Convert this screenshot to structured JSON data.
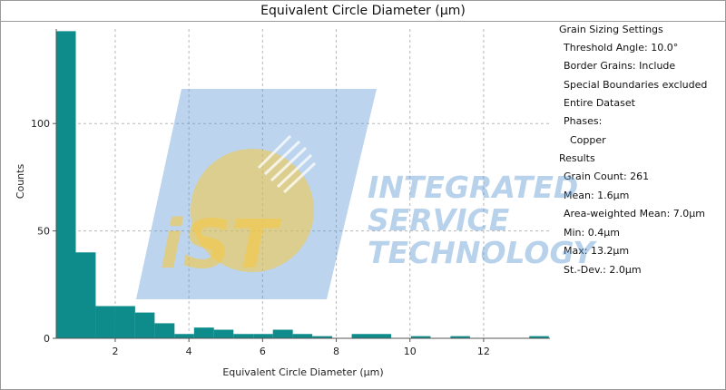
{
  "window": {
    "title": "Equivalent Circle Diameter (μm)"
  },
  "panel": {
    "settings_header": "Grain Sizing Settings",
    "threshold_angle": "Threshold Angle: 10.0°",
    "border_grains": "Border Grains: Include",
    "special_boundaries": "Special Boundaries excluded",
    "dataset": "Entire Dataset",
    "phases_label": "Phases:",
    "phase_name": "Copper",
    "results_header": "Results",
    "grain_count": "Grain Count: 261",
    "mean": "Mean: 1.6μm",
    "area_weighted_mean": "Area-weighted Mean: 7.0μm",
    "min": "Min: 0.4μm",
    "max": "Max: 13.2μm",
    "stdev": "St.-Dev.: 2.0μm"
  },
  "watermark": {
    "logo_text": "iST",
    "line1": "INTEGRATED",
    "line2": "SERVICE",
    "line3": "TECHNOLOGY"
  },
  "colors": {
    "bar": "#0e8b8b",
    "grid": "#b8b8b8",
    "watermark_blue": "#4f8fd0",
    "watermark_yellow": "#f5c842"
  },
  "chart_data": {
    "type": "bar",
    "xlabel": "Equivalent Circle Diameter (μm)",
    "ylabel": "Counts",
    "xlim": [
      0.4,
      13.8
    ],
    "ylim": [
      0,
      144
    ],
    "xticks": [
      2,
      4,
      6,
      8,
      10,
      12
    ],
    "yticks": [
      0,
      50,
      100
    ],
    "grid": true,
    "bins": [
      {
        "x0": 0.4,
        "x1": 0.93,
        "count": 143
      },
      {
        "x0": 0.93,
        "x1": 1.47,
        "count": 40
      },
      {
        "x0": 1.47,
        "x1": 2.0,
        "count": 15
      },
      {
        "x0": 2.0,
        "x1": 2.54,
        "count": 15
      },
      {
        "x0": 2.54,
        "x1": 3.07,
        "count": 12
      },
      {
        "x0": 3.07,
        "x1": 3.61,
        "count": 7
      },
      {
        "x0": 3.61,
        "x1": 4.14,
        "count": 2
      },
      {
        "x0": 4.14,
        "x1": 4.68,
        "count": 5
      },
      {
        "x0": 4.68,
        "x1": 5.21,
        "count": 4
      },
      {
        "x0": 5.21,
        "x1": 5.75,
        "count": 2
      },
      {
        "x0": 5.75,
        "x1": 6.28,
        "count": 2
      },
      {
        "x0": 6.28,
        "x1": 6.82,
        "count": 4
      },
      {
        "x0": 6.82,
        "x1": 7.35,
        "count": 2
      },
      {
        "x0": 7.35,
        "x1": 7.89,
        "count": 1
      },
      {
        "x0": 8.42,
        "x1": 8.96,
        "count": 2
      },
      {
        "x0": 8.96,
        "x1": 9.49,
        "count": 2
      },
      {
        "x0": 10.03,
        "x1": 10.56,
        "count": 1
      },
      {
        "x0": 11.1,
        "x1": 11.63,
        "count": 1
      },
      {
        "x0": 13.24,
        "x1": 13.77,
        "count": 1
      }
    ]
  }
}
